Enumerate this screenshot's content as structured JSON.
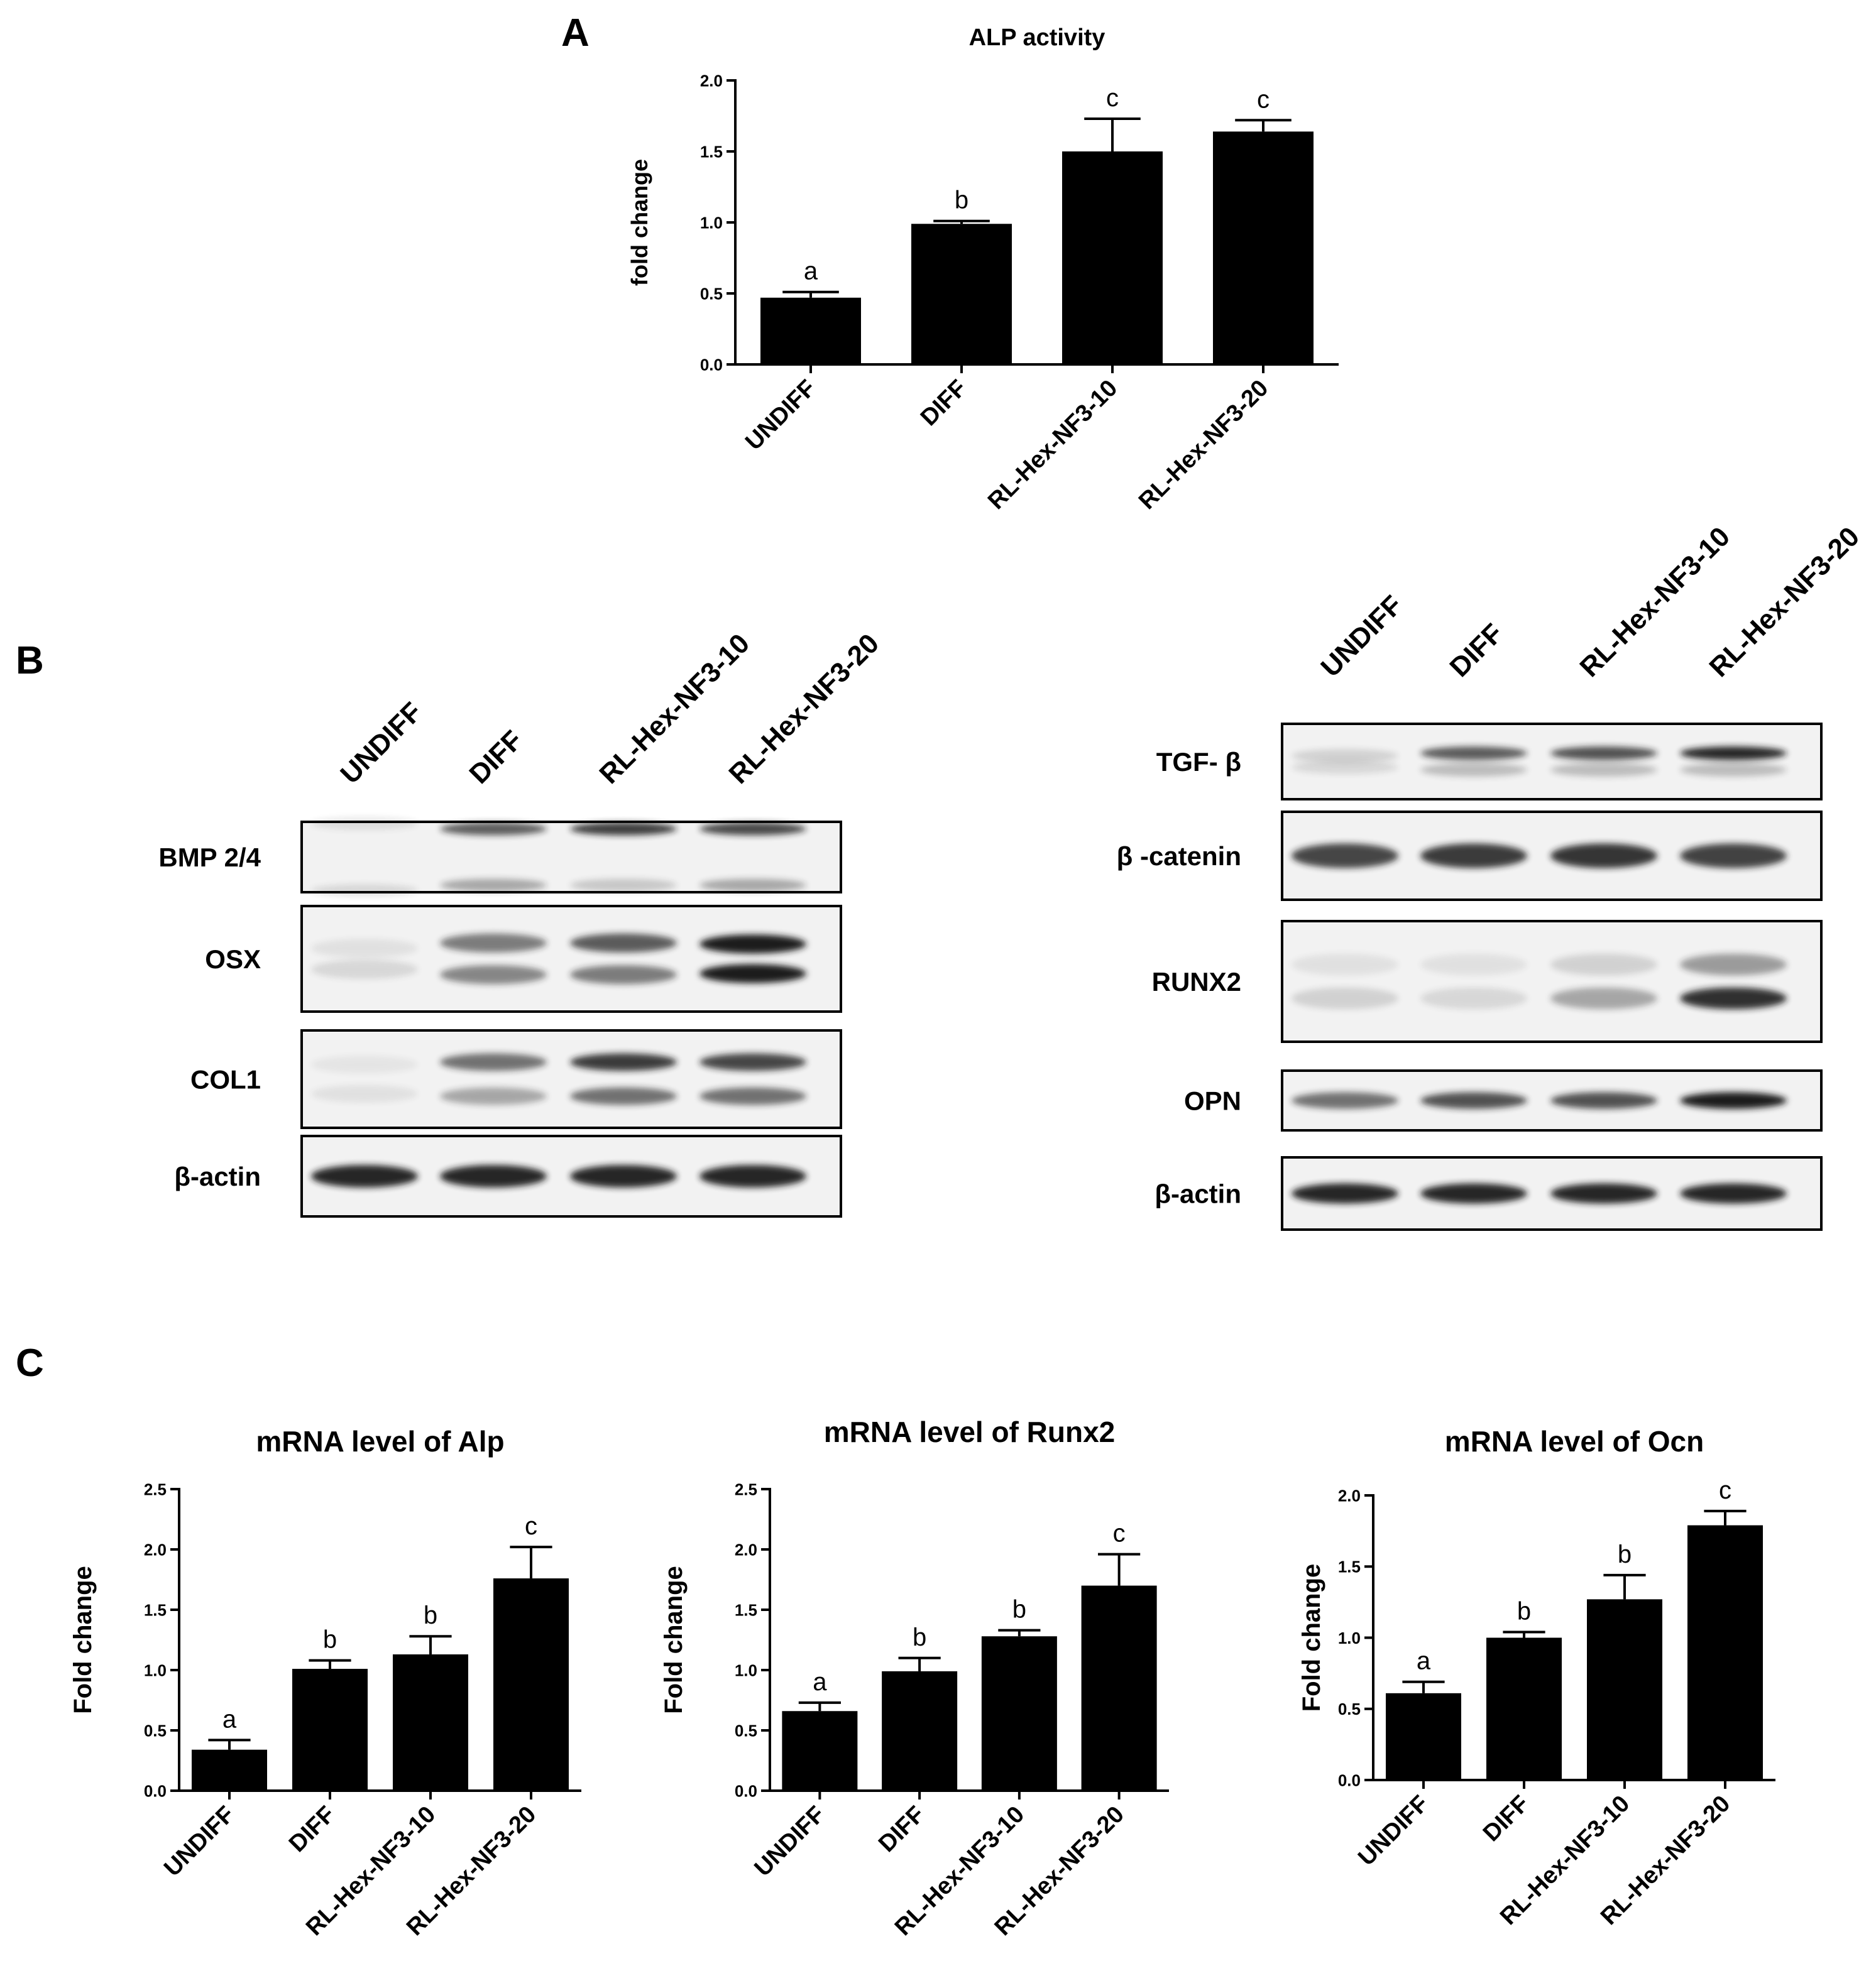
{
  "panels": [
    {
      "letter": "A"
    },
    {
      "letter": "B"
    },
    {
      "letter": "C"
    }
  ],
  "colors": {
    "bar": "#000000",
    "band": "#1a1a1a",
    "blot_bg": "#f2f2f2"
  },
  "chart_data": [
    {
      "id": "alp-activity",
      "type": "bar",
      "title": "ALP activity",
      "ylabel": "fold change",
      "xlabel": "",
      "categories": [
        "UNDIFF",
        "DIFF",
        "RL-Hex-NF3-10",
        "RL-Hex-NF3-20"
      ],
      "values": [
        0.47,
        0.99,
        1.5,
        1.64
      ],
      "errors": [
        0.04,
        0.02,
        0.23,
        0.08
      ],
      "significance": [
        "a",
        "b",
        "c",
        "c"
      ],
      "ylim": [
        0,
        2.0
      ],
      "yticks": [
        "0.0",
        "0.5",
        "1.0",
        "1.5",
        "2.0"
      ],
      "grid": false,
      "legend": "none"
    },
    {
      "id": "mrna-alp",
      "type": "bar",
      "title": "mRNA level of Alp",
      "ylabel": "Fold change",
      "xlabel": "",
      "categories": [
        "UNDIFF",
        "DIFF",
        "RL-Hex-NF3-10",
        "RL-Hex-NF3-20"
      ],
      "values": [
        0.34,
        1.01,
        1.13,
        1.76
      ],
      "errors": [
        0.08,
        0.07,
        0.15,
        0.26
      ],
      "significance": [
        "a",
        "b",
        "b",
        "c"
      ],
      "ylim": [
        0,
        2.5
      ],
      "yticks": [
        "0.0",
        "0.5",
        "1.0",
        "1.5",
        "2.0",
        "2.5"
      ],
      "grid": false,
      "legend": "none"
    },
    {
      "id": "mrna-runx2",
      "type": "bar",
      "title": "mRNA level of Runx2",
      "ylabel": "Fold change",
      "xlabel": "",
      "categories": [
        "UNDIFF",
        "DIFF",
        "RL-Hex-NF3-10",
        "RL-Hex-NF3-20"
      ],
      "values": [
        0.66,
        0.99,
        1.28,
        1.7
      ],
      "errors": [
        0.07,
        0.11,
        0.05,
        0.26
      ],
      "significance": [
        "a",
        "b",
        "b",
        "c"
      ],
      "ylim": [
        0,
        2.5
      ],
      "yticks": [
        "0.0",
        "0.5",
        "1.0",
        "1.5",
        "2.0",
        "2.5"
      ],
      "grid": false,
      "legend": "none"
    },
    {
      "id": "mrna-ocn",
      "type": "bar",
      "title": "mRNA level of Ocn",
      "ylabel": "Fold change",
      "xlabel": "",
      "categories": [
        "UNDIFF",
        "DIFF",
        "RL-Hex-NF3-10",
        "RL-Hex-NF3-20"
      ],
      "values": [
        0.61,
        1.0,
        1.27,
        1.79
      ],
      "errors": [
        0.08,
        0.04,
        0.17,
        0.1
      ],
      "significance": [
        "a",
        "b",
        "b",
        "c"
      ],
      "ylim": [
        0,
        2.0
      ],
      "yticks": [
        "0.0",
        "0.5",
        "1.0",
        "1.5",
        "2.0"
      ],
      "grid": false,
      "legend": "none"
    }
  ],
  "blots": [
    {
      "id": "left",
      "lanes": [
        "UNDIFF",
        "DIFF",
        "RL-Hex-NF3-10",
        "RL-Hex-NF3-20"
      ],
      "rows": [
        {
          "label": "BMP 2/4",
          "bands": [
            [
              0.12,
              0.95,
              0.1
            ],
            [
              0.35,
              0.8,
              0.7
            ],
            [
              0.2,
              0.8,
              0.85
            ],
            [
              0.35,
              0.8,
              0.8
            ]
          ]
        },
        {
          "label": "OSX",
          "bands": [
            [
              0.12,
              0.2,
              0.08
            ],
            [
              0.5,
              0.3,
              0.55
            ],
            [
              0.55,
              0.3,
              0.7
            ],
            [
              1.0,
              0.28,
              1.0
            ]
          ]
        },
        {
          "label": "COL1",
          "bands": [
            [
              0.08,
              0.3,
              0.06
            ],
            [
              0.35,
              0.35,
              0.6
            ],
            [
              0.6,
              0.35,
              0.85
            ],
            [
              0.6,
              0.35,
              0.8
            ]
          ]
        },
        {
          "label": "β-actin",
          "bands": [
            [
              0.95,
              0.5,
              0
            ],
            [
              0.95,
              0.5,
              0
            ],
            [
              0.95,
              0.5,
              0
            ],
            [
              0.95,
              0.5,
              0
            ]
          ]
        }
      ]
    },
    {
      "id": "right",
      "lanes": [
        "UNDIFF",
        "DIFF",
        "RL-Hex-NF3-10",
        "RL-Hex-NF3-20"
      ],
      "rows": [
        {
          "label": "TGF- β",
          "bands": [
            [
              0.12,
              0.15,
              0.15
            ],
            [
              0.25,
              0.22,
              0.7
            ],
            [
              0.25,
              0.22,
              0.75
            ],
            [
              0.25,
              0.22,
              0.95
            ]
          ]
        },
        {
          "label": "β -catenin",
          "bands": [
            [
              0.8,
              0.5,
              0
            ],
            [
              0.85,
              0.5,
              0
            ],
            [
              0.88,
              0.5,
              0
            ],
            [
              0.82,
              0.5,
              0
            ]
          ]
        },
        {
          "label": "RUNX2",
          "bands": [
            [
              0.15,
              0.28,
              0.08
            ],
            [
              0.12,
              0.28,
              0.08
            ],
            [
              0.35,
              0.28,
              0.15
            ],
            [
              0.9,
              0.28,
              0.4
            ]
          ]
        },
        {
          "label": "OPN",
          "bands": [
            [
              0.6,
              0.5,
              0
            ],
            [
              0.75,
              0.5,
              0
            ],
            [
              0.75,
              0.5,
              0
            ],
            [
              1.0,
              0.5,
              0
            ]
          ]
        },
        {
          "label": "β-actin",
          "bands": [
            [
              0.95,
              0.5,
              0
            ],
            [
              0.95,
              0.5,
              0
            ],
            [
              0.95,
              0.5,
              0
            ],
            [
              0.95,
              0.5,
              0
            ]
          ]
        }
      ]
    }
  ]
}
